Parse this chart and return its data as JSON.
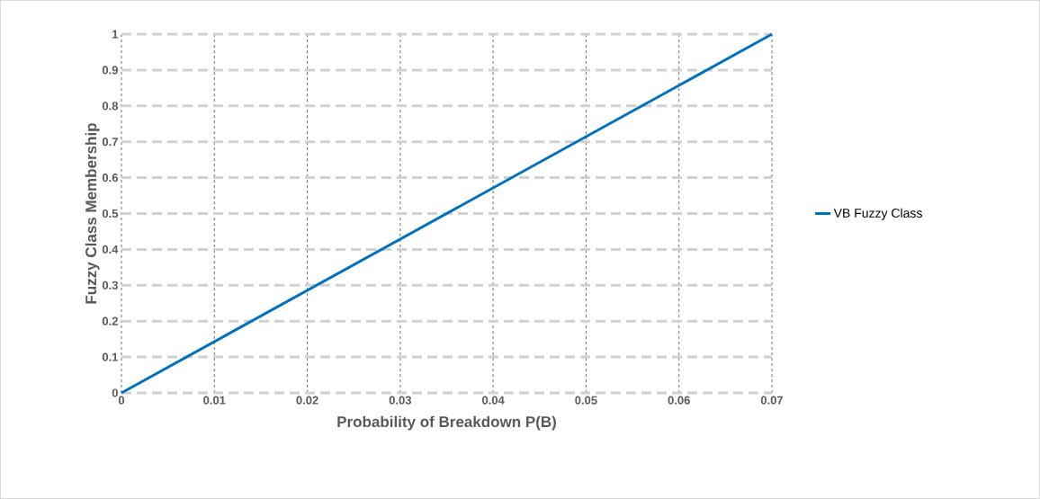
{
  "chart_data": {
    "type": "line",
    "xlabel": "Probability of Breakdown P(B)",
    "ylabel": "Fuzzy Class Membership",
    "x": [
      0,
      0.07
    ],
    "series": [
      {
        "name": "VB Fuzzy Class",
        "color": "#0070c0",
        "values": [
          0,
          1
        ]
      }
    ],
    "xlim": [
      0,
      0.07
    ],
    "xticks": [
      0,
      0.01,
      0.02,
      0.03,
      0.04,
      0.05,
      0.06,
      0.07
    ],
    "ylim": [
      0,
      1
    ],
    "yticks": [
      0,
      0.1,
      0.2,
      0.3,
      0.4,
      0.5,
      0.6,
      0.7,
      0.8,
      0.9,
      1
    ],
    "grid": true,
    "legend": "right"
  }
}
